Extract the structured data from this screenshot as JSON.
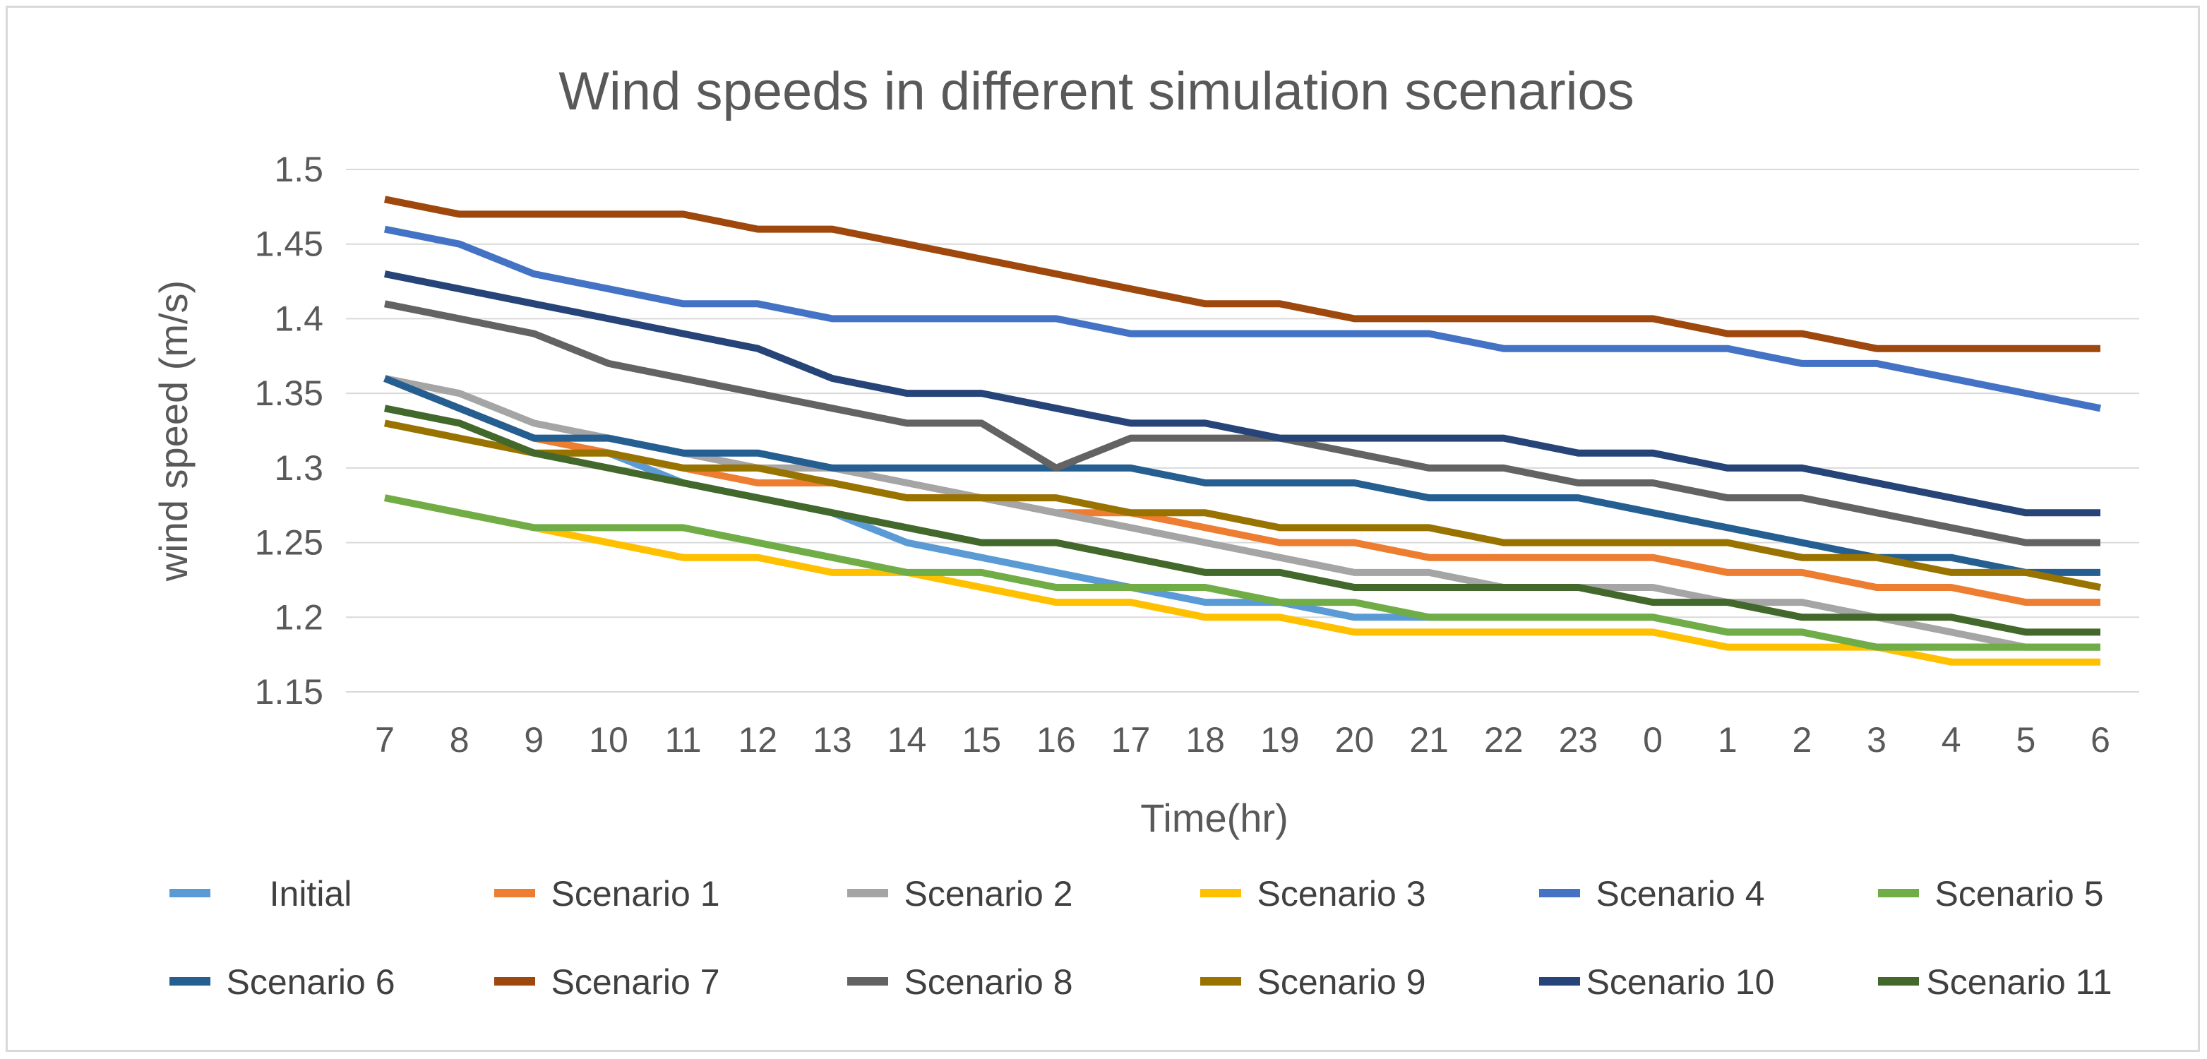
{
  "chart_data": {
    "type": "line",
    "title": "Wind speeds in different simulation scenarios",
    "xlabel": "Time(hr)",
    "ylabel": "wind speed (m/s)",
    "ylim": [
      1.15,
      1.5
    ],
    "yticks": [
      "1.5",
      "1.45",
      "1.4",
      "1.35",
      "1.3",
      "1.25",
      "1.2",
      "1.15"
    ],
    "categories": [
      "7",
      "8",
      "9",
      "10",
      "11",
      "12",
      "13",
      "14",
      "15",
      "16",
      "17",
      "18",
      "19",
      "20",
      "21",
      "22",
      "23",
      "0",
      "1",
      "2",
      "3",
      "4",
      "5",
      "6"
    ],
    "grid": true,
    "legend_position": "bottom",
    "series": [
      {
        "name": "Initial",
        "color": "#5b9bd5",
        "values": [
          1.36,
          1.34,
          1.32,
          1.31,
          1.29,
          1.28,
          1.27,
          1.25,
          1.24,
          1.23,
          1.22,
          1.21,
          1.21,
          1.2,
          1.2,
          1.2,
          1.2,
          1.2,
          1.19,
          1.19,
          1.18,
          1.18,
          1.18,
          1.18
        ]
      },
      {
        "name": "Scenario 1",
        "color": "#ed7d31",
        "values": [
          1.36,
          1.34,
          1.32,
          1.31,
          1.3,
          1.29,
          1.29,
          1.28,
          1.28,
          1.27,
          1.27,
          1.26,
          1.25,
          1.25,
          1.24,
          1.24,
          1.24,
          1.24,
          1.23,
          1.23,
          1.22,
          1.22,
          1.21,
          1.21
        ]
      },
      {
        "name": "Scenario 2",
        "color": "#a5a5a5",
        "values": [
          1.36,
          1.35,
          1.33,
          1.32,
          1.31,
          1.3,
          1.3,
          1.29,
          1.28,
          1.27,
          1.26,
          1.25,
          1.24,
          1.23,
          1.23,
          1.22,
          1.22,
          1.22,
          1.21,
          1.21,
          1.2,
          1.19,
          1.18,
          1.18
        ]
      },
      {
        "name": "Scenario 3",
        "color": "#ffc000",
        "values": [
          1.28,
          1.27,
          1.26,
          1.25,
          1.24,
          1.24,
          1.23,
          1.23,
          1.22,
          1.21,
          1.21,
          1.2,
          1.2,
          1.19,
          1.19,
          1.19,
          1.19,
          1.19,
          1.18,
          1.18,
          1.18,
          1.17,
          1.17,
          1.17
        ]
      },
      {
        "name": "Scenario 4",
        "color": "#4472c4",
        "values": [
          1.46,
          1.45,
          1.43,
          1.42,
          1.41,
          1.41,
          1.4,
          1.4,
          1.4,
          1.4,
          1.39,
          1.39,
          1.39,
          1.39,
          1.39,
          1.38,
          1.38,
          1.38,
          1.38,
          1.37,
          1.37,
          1.36,
          1.35,
          1.34
        ]
      },
      {
        "name": "Scenario 5",
        "color": "#70ad47",
        "values": [
          1.28,
          1.27,
          1.26,
          1.26,
          1.26,
          1.25,
          1.24,
          1.23,
          1.23,
          1.22,
          1.22,
          1.22,
          1.21,
          1.21,
          1.2,
          1.2,
          1.2,
          1.2,
          1.19,
          1.19,
          1.18,
          1.18,
          1.18,
          1.18
        ]
      },
      {
        "name": "Scenario 6",
        "color": "#255e91",
        "values": [
          1.36,
          1.34,
          1.32,
          1.32,
          1.31,
          1.31,
          1.3,
          1.3,
          1.3,
          1.3,
          1.3,
          1.29,
          1.29,
          1.29,
          1.28,
          1.28,
          1.28,
          1.27,
          1.26,
          1.25,
          1.24,
          1.24,
          1.23,
          1.23
        ]
      },
      {
        "name": "Scenario 7",
        "color": "#9e480e",
        "values": [
          1.48,
          1.47,
          1.47,
          1.47,
          1.47,
          1.46,
          1.46,
          1.45,
          1.44,
          1.43,
          1.42,
          1.41,
          1.41,
          1.4,
          1.4,
          1.4,
          1.4,
          1.4,
          1.39,
          1.39,
          1.38,
          1.38,
          1.38,
          1.38
        ]
      },
      {
        "name": "Scenario 8",
        "color": "#636363",
        "values": [
          1.41,
          1.4,
          1.39,
          1.37,
          1.36,
          1.35,
          1.34,
          1.33,
          1.33,
          1.3,
          1.32,
          1.32,
          1.32,
          1.31,
          1.3,
          1.3,
          1.29,
          1.29,
          1.28,
          1.28,
          1.27,
          1.26,
          1.25,
          1.25
        ]
      },
      {
        "name": "Scenario 9",
        "color": "#997300",
        "values": [
          1.33,
          1.32,
          1.31,
          1.31,
          1.3,
          1.3,
          1.29,
          1.28,
          1.28,
          1.28,
          1.27,
          1.27,
          1.26,
          1.26,
          1.26,
          1.25,
          1.25,
          1.25,
          1.25,
          1.24,
          1.24,
          1.23,
          1.23,
          1.22
        ]
      },
      {
        "name": "Scenario 10",
        "color": "#264478",
        "values": [
          1.43,
          1.42,
          1.41,
          1.4,
          1.39,
          1.38,
          1.36,
          1.35,
          1.35,
          1.34,
          1.33,
          1.33,
          1.32,
          1.32,
          1.32,
          1.32,
          1.31,
          1.31,
          1.3,
          1.3,
          1.29,
          1.28,
          1.27,
          1.27
        ]
      },
      {
        "name": "Scenario 11",
        "color": "#43682b",
        "values": [
          1.34,
          1.33,
          1.31,
          1.3,
          1.29,
          1.28,
          1.27,
          1.26,
          1.25,
          1.25,
          1.24,
          1.23,
          1.23,
          1.22,
          1.22,
          1.22,
          1.22,
          1.21,
          1.21,
          1.2,
          1.2,
          1.2,
          1.19,
          1.19
        ]
      }
    ]
  }
}
